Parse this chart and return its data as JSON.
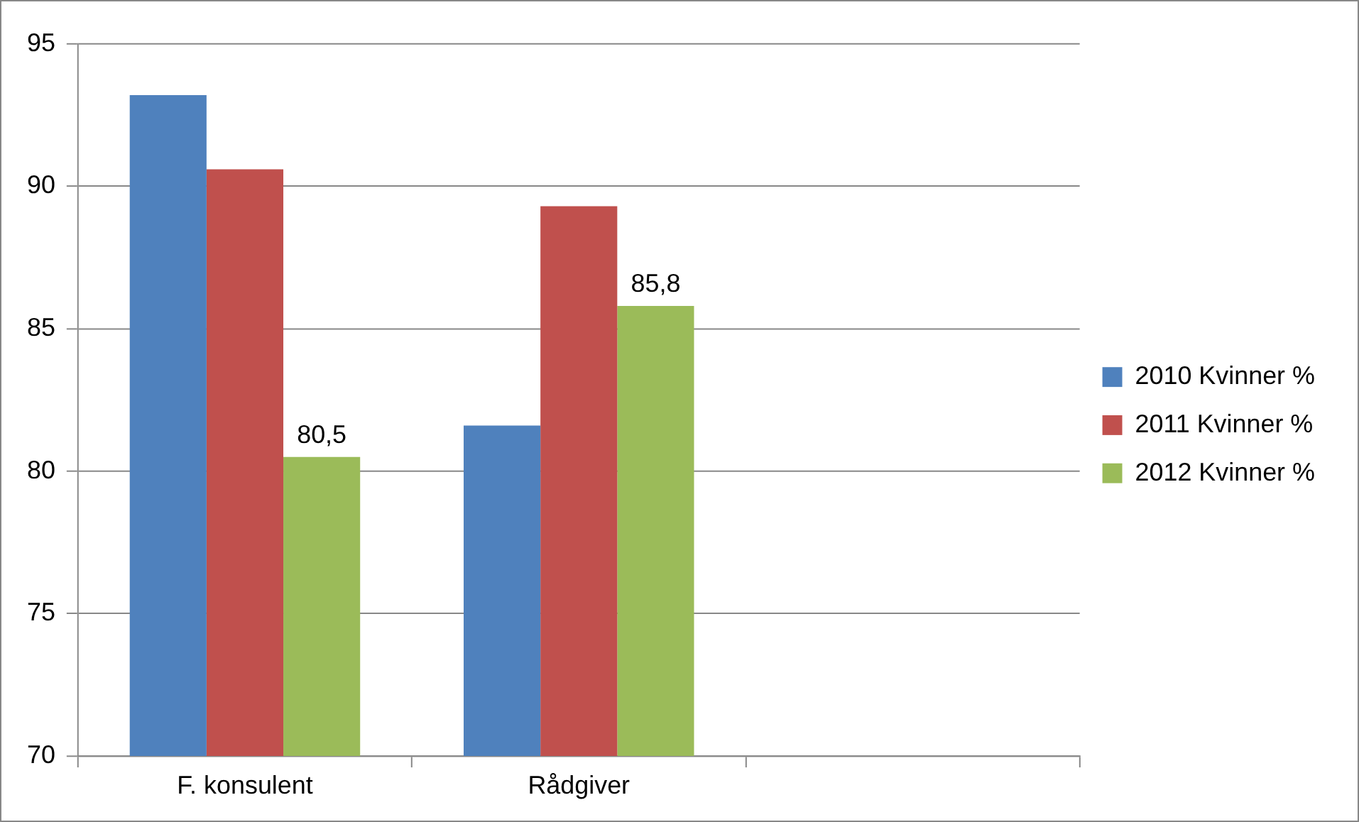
{
  "chart_data": {
    "type": "bar",
    "categories": [
      "F. konsulent",
      "Rådgiver",
      null
    ],
    "series": [
      {
        "name": "2010 Kvinner %",
        "color": "#4f81bd",
        "values": [
          93.2,
          81.6,
          null
        ]
      },
      {
        "name": "2011 Kvinner %",
        "color": "#c0504d",
        "values": [
          90.6,
          89.3,
          null
        ]
      },
      {
        "name": "2012 Kvinner %",
        "color": "#9bbb59",
        "values": [
          80.5,
          85.8,
          null
        ],
        "value_labels": [
          "80,5",
          "85,8",
          null
        ]
      }
    ],
    "ylim": [
      70,
      95
    ],
    "yticks": [
      70,
      75,
      80,
      85,
      90,
      95
    ],
    "grid": "y",
    "legend": "right"
  }
}
